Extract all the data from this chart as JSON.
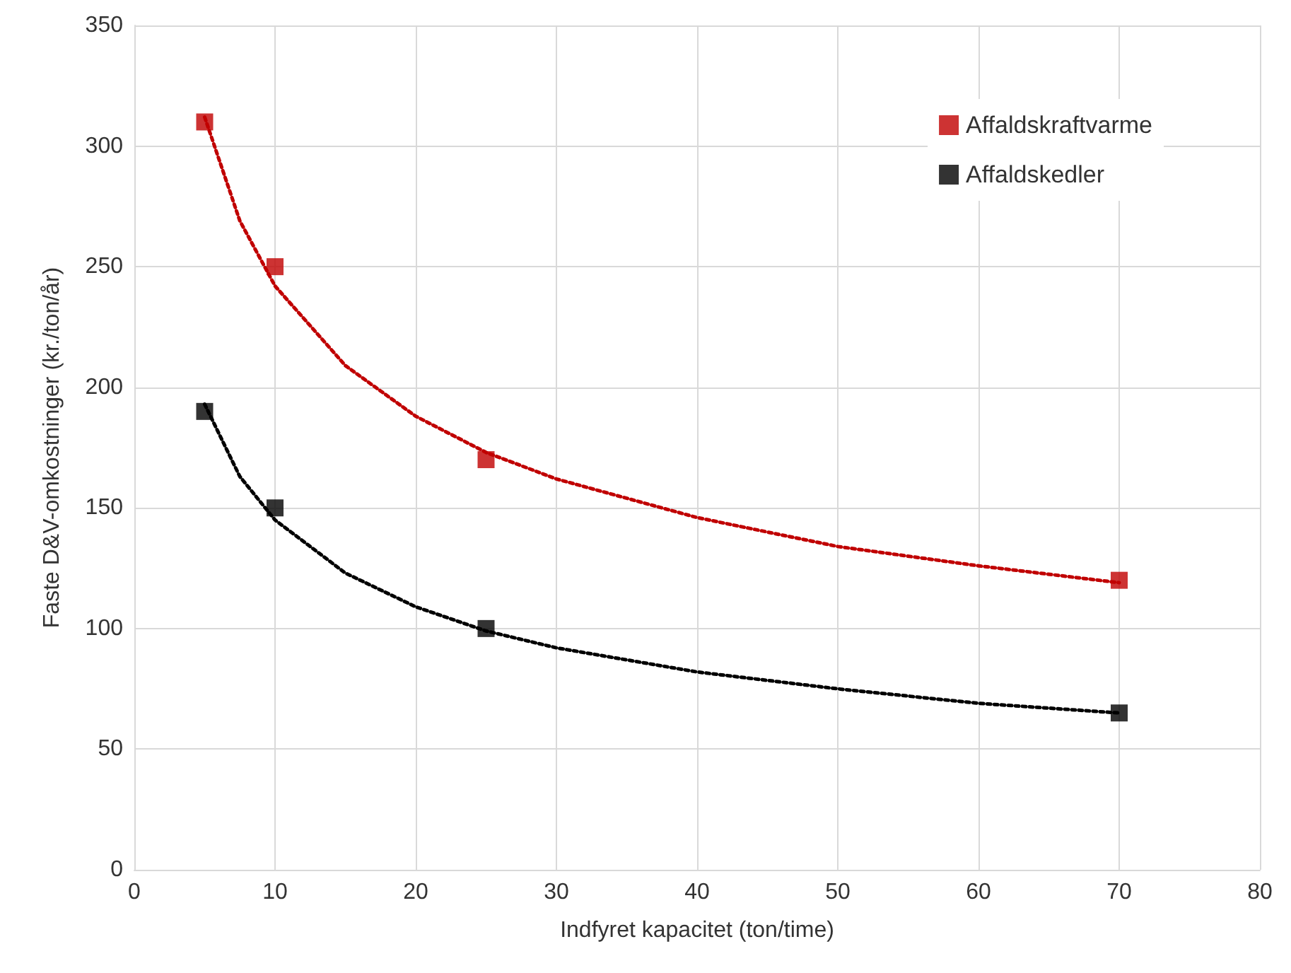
{
  "chart_data": {
    "type": "scatter",
    "xlabel": "Indfyret kapacitet (ton/time)",
    "ylabel": "Faste D&V-omkostninger (kr./ton/år)",
    "xlim": [
      0,
      80
    ],
    "xticks": [
      0,
      10,
      20,
      30,
      40,
      50,
      60,
      70,
      80
    ],
    "ylim": [
      0,
      350
    ],
    "yticks": [
      0,
      50,
      100,
      150,
      200,
      250,
      300,
      350
    ],
    "grid": true,
    "legend": "top right",
    "marker": "square",
    "series": [
      {
        "name": "Affaldskraftvarme",
        "color": "#c00000",
        "x": [
          5,
          10,
          25,
          70
        ],
        "values": [
          310,
          250,
          170,
          120
        ]
      },
      {
        "name": "Affaldskedler",
        "color": "#000000",
        "x": [
          5,
          10,
          25,
          70
        ],
        "values": [
          190,
          150,
          100,
          65
        ]
      },
      {
        "type": "line",
        "color": "#c00000",
        "line_style": "dotted",
        "marker": "none",
        "x": [
          5,
          7.5,
          10,
          15,
          20,
          25,
          30,
          40,
          50,
          60,
          70
        ],
        "values": [
          312,
          269,
          242,
          209,
          188,
          173,
          162,
          146,
          134,
          126,
          119
        ]
      },
      {
        "type": "line",
        "color": "#000000",
        "line_style": "dotted",
        "marker": "none",
        "x": [
          5,
          7.5,
          10,
          15,
          20,
          25,
          30,
          40,
          50,
          60,
          70
        ],
        "values": [
          193,
          163,
          145,
          123,
          109,
          99,
          92,
          82,
          75,
          69,
          65
        ]
      }
    ]
  }
}
